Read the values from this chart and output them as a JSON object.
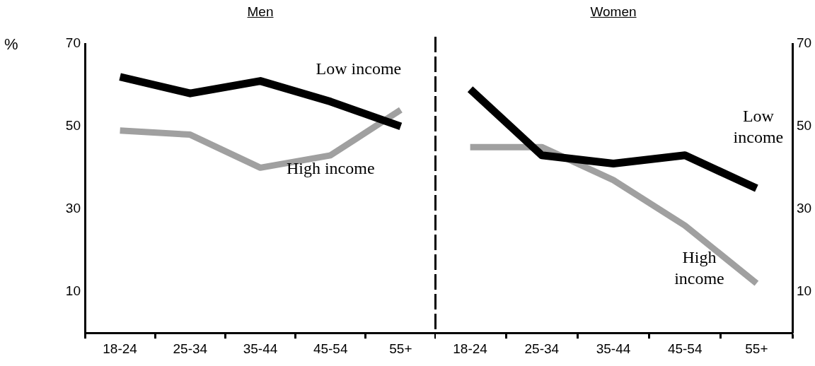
{
  "chart_data": [
    {
      "type": "line",
      "title": "Men",
      "ylabel": "%",
      "categories": [
        "18-24",
        "25-34",
        "35-44",
        "45-54",
        "55+"
      ],
      "ylim": [
        0,
        70
      ],
      "yticks": [
        10,
        30,
        50,
        70
      ],
      "grid": false,
      "legend": false,
      "marker": "none",
      "series": [
        {
          "name": "Low income",
          "color": "#000000",
          "values": [
            62,
            58,
            61,
            56,
            50
          ]
        },
        {
          "name": "High income",
          "color": "#a0a0a0",
          "values": [
            49,
            48,
            40,
            43,
            54
          ]
        }
      ]
    },
    {
      "type": "line",
      "title": "Women",
      "categories": [
        "18-24",
        "25-34",
        "35-44",
        "45-54",
        "55+"
      ],
      "y2lim": [
        0,
        70
      ],
      "y2ticks": [
        10,
        30,
        50,
        70
      ],
      "grid": false,
      "legend": false,
      "marker": "none",
      "series": [
        {
          "name": "Low income",
          "color": "#000000",
          "axis": "y2",
          "values": [
            59,
            43,
            41,
            43,
            35
          ]
        },
        {
          "name": "High income",
          "color": "#a0a0a0",
          "axis": "y2",
          "values": [
            45,
            45,
            37,
            26,
            12
          ]
        }
      ]
    }
  ]
}
